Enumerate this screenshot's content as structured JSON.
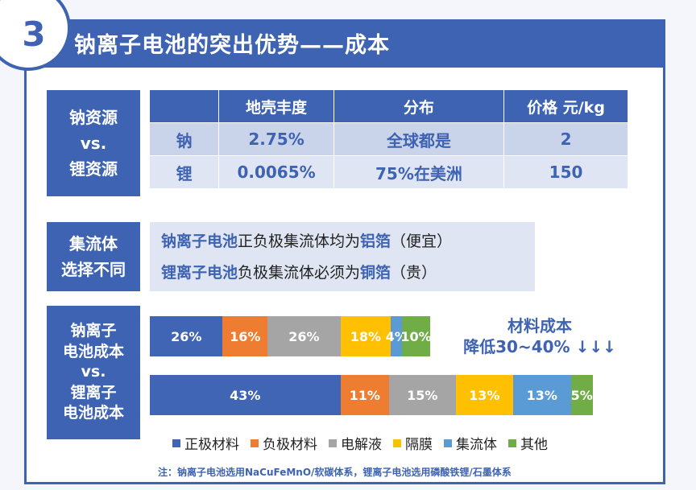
{
  "header": {
    "number": "3",
    "title": "钠离子电池的突出优势——成本"
  },
  "resources": {
    "label": [
      "钠资源",
      "vs.",
      "锂资源"
    ],
    "columns": [
      "",
      "地壳丰度",
      "分布",
      "价格 元/kg"
    ],
    "rows": [
      {
        "element": "钠",
        "abundance": "2.75%",
        "distribution": "全球都是",
        "price": "2"
      },
      {
        "element": "锂",
        "abundance": "0.0065%",
        "distribution": "75%在美洲",
        "price": "150"
      }
    ]
  },
  "collector": {
    "label": [
      "集流体",
      "选择不同"
    ],
    "line1": {
      "part1": "钠离子电池",
      "part2": "正负极集流体均为",
      "part3": "铝箔",
      "part4": "（便宜）"
    },
    "line2": {
      "part1": "锂离子电池",
      "part2": "负极集流体必须为",
      "part3": "铜箔",
      "part4": "（贵）"
    }
  },
  "cost": {
    "label": [
      "钠离子",
      "电池成本",
      "vs.",
      "锂离子",
      "电池成本"
    ],
    "note_line1": "材料成本",
    "note_line2": "降低30~40% ↓↓↓"
  },
  "chart_data": {
    "type": "bar",
    "stacked": true,
    "orientation": "horizontal",
    "categories": [
      "钠离子电池成本",
      "锂离子电池成本"
    ],
    "series": [
      {
        "name": "正极材料",
        "color": "#4065b5",
        "values": [
          26,
          43
        ],
        "labels": [
          "26%",
          "43%"
        ]
      },
      {
        "name": "负极材料",
        "color": "#ee7d31",
        "values": [
          16,
          11
        ],
        "labels": [
          "16%",
          "11%"
        ]
      },
      {
        "name": "电解液",
        "color": "#a5a5a5",
        "values": [
          26,
          15
        ],
        "labels": [
          "26%",
          "15%"
        ]
      },
      {
        "name": "隔膜",
        "color": "#fec000",
        "values": [
          18,
          13
        ],
        "labels": [
          "18%",
          "13%"
        ]
      },
      {
        "name": "集流体",
        "color": "#5b9bd5",
        "values": [
          4,
          13
        ],
        "labels": [
          "4%",
          "13%"
        ]
      },
      {
        "name": "其他",
        "color": "#70ad47",
        "values": [
          10,
          5
        ],
        "labels": [
          "10%",
          "5%"
        ]
      }
    ]
  },
  "footnote": "注：钠离子电池选用NaCuFeMnO/软碳体系，锂离子电池选用磷酸铁锂/石墨体系"
}
